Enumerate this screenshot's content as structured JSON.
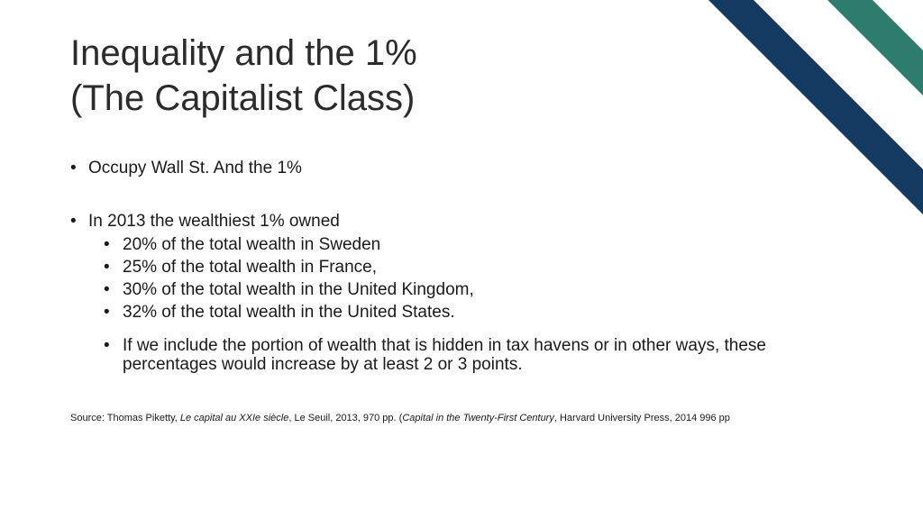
{
  "slide": {
    "title_line1": "Inequality and the 1%",
    "title_line2": "(The Capitalist Class)"
  },
  "bullets": {
    "item1": "Occupy Wall St. And the 1%",
    "item2": "In 2013 the wealthiest 1% owned",
    "sub": [
      "20% of the total wealth in Sweden",
      "25% of the total wealth in France,",
      "30% of the total wealth in the United Kingdom,",
      "32% of the total wealth in the United States."
    ],
    "note": "If we include the portion of wealth that is hidden in tax havens or in other ways, these percentages would increase by at least 2 or 3 points."
  },
  "source": {
    "prefix": "Source: Thomas Piketty, ",
    "book1": "Le capital au XXIe siècle",
    "mid": ", Le Seuil, 2013, 970 pp. (",
    "book2": "Capital in the Twenty-First Century",
    "suffix": ", Harvard University Press, 2014 996 pp"
  },
  "colors": {
    "navy_stripe": "#143a62",
    "teal_stripe": "#2e7c6e"
  }
}
